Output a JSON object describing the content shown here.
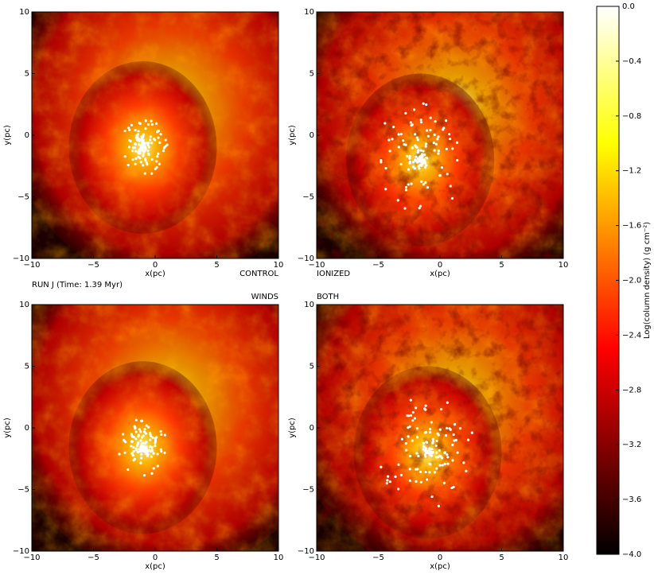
{
  "annotation": "RUN J (Time: 1.39 Myr)",
  "chart_data": [
    {
      "type": "image",
      "label": "CONTROL",
      "xlabel": "x(pc)",
      "ylabel": "y(pc)",
      "xlim": [
        -10,
        10
      ],
      "ylim": [
        -10,
        10
      ],
      "xticks": [
        {
          "value": -10,
          "label": "−10"
        },
        {
          "value": -5,
          "label": "−5"
        },
        0,
        5,
        10
      ],
      "yticks": [
        {
          "value": -10,
          "label": "−10"
        },
        {
          "value": -5,
          "label": "−5"
        },
        0,
        5,
        10
      ]
    },
    {
      "type": "image",
      "label": "IONIZED",
      "xlabel": "x(pc)",
      "ylabel": "y(pc)",
      "xlim": [
        -10,
        10
      ],
      "ylim": [
        -10,
        10
      ],
      "xticks": [
        {
          "value": -10,
          "label": "−10"
        },
        {
          "value": -5,
          "label": "−5"
        },
        0,
        5,
        10
      ],
      "yticks": [
        {
          "value": -10,
          "label": "−10"
        },
        {
          "value": -5,
          "label": "−5"
        },
        0,
        5,
        10
      ]
    },
    {
      "type": "image",
      "label": "WINDS",
      "xlabel": "x(pc)",
      "ylabel": "y(pc)",
      "xlim": [
        -10,
        10
      ],
      "ylim": [
        -10,
        10
      ],
      "xticks": [
        {
          "value": -10,
          "label": "−10"
        },
        {
          "value": -5,
          "label": "−5"
        },
        0,
        5,
        10
      ],
      "yticks": [
        {
          "value": -10,
          "label": "−10"
        },
        {
          "value": -5,
          "label": "−5"
        },
        0,
        5,
        10
      ]
    },
    {
      "type": "image",
      "label": "BOTH",
      "xlabel": "x(pc)",
      "ylabel": "y(pc)",
      "xlim": [
        -10,
        10
      ],
      "ylim": [
        -10,
        10
      ],
      "xticks": [
        {
          "value": -10,
          "label": "−10"
        },
        {
          "value": -5,
          "label": "−5"
        },
        0,
        5,
        10
      ],
      "yticks": [
        {
          "value": -10,
          "label": "−10"
        },
        {
          "value": -5,
          "label": "−5"
        },
        0,
        5,
        10
      ]
    },
    {
      "type": "colorbar",
      "ylabel": "Log(column density) (g cm⁻²)",
      "ylim": [
        -4,
        0
      ],
      "yticks": [
        {
          "value": 0,
          "label": "0.0"
        },
        {
          "value": -0.4,
          "label": "−0.4"
        },
        {
          "value": -0.8,
          "label": "−0.8"
        },
        {
          "value": -1.2,
          "label": "−1.2"
        },
        {
          "value": -1.6,
          "label": "−1.6"
        },
        {
          "value": -2,
          "label": "−2.0"
        },
        {
          "value": -2.4,
          "label": "−2.4"
        },
        {
          "value": -2.8,
          "label": "−2.8"
        },
        {
          "value": -3.2,
          "label": "−3.2"
        },
        {
          "value": -3.6,
          "label": "−3.6"
        },
        {
          "value": -4,
          "label": "−4.0"
        }
      ]
    }
  ]
}
